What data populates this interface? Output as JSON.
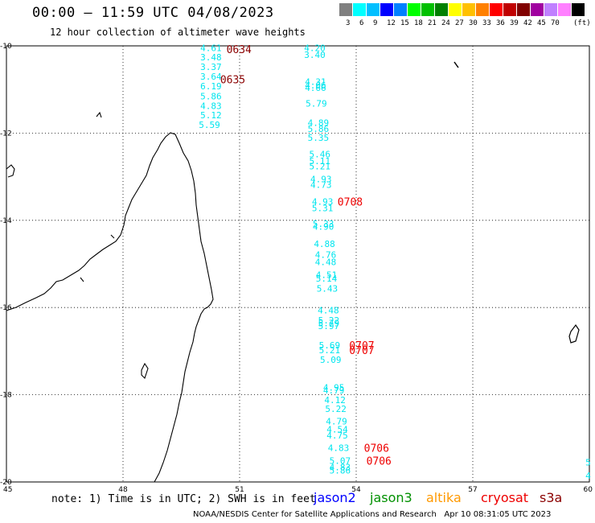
{
  "header": {
    "title": "00:00 – 11:59 UTC 04/08/2023",
    "subtitle": "12 hour collection of altimeter wave heights"
  },
  "legend_scale": {
    "unit": "(ft)",
    "colors": [
      "#808080",
      "#00ffff",
      "#00bfff",
      "#0000ff",
      "#0080ff",
      "#00ff00",
      "#00c000",
      "#008000",
      "#ffff00",
      "#ffc000",
      "#ff8000",
      "#ff0000",
      "#c00000",
      "#800000",
      "#a000a0",
      "#c080ff",
      "#ff80ff",
      "#000000"
    ],
    "labels": [
      "3",
      "6",
      "9",
      "12",
      "15",
      "18",
      "21",
      "24",
      "27",
      "30",
      "33",
      "36",
      "39",
      "42",
      "45",
      "70"
    ]
  },
  "axes": {
    "lon_labels": [
      "45",
      "48",
      "51",
      "54",
      "57",
      "60"
    ],
    "lat_labels": [
      "-10",
      "-12",
      "-14",
      "-16",
      "-18",
      "-20"
    ]
  },
  "wave_labels": [
    {
      "t": "4.61",
      "lon": 49.99,
      "lat": -10.05
    },
    {
      "t": "3.48",
      "lon": 49.99,
      "lat": -10.26
    },
    {
      "t": "3.37",
      "lon": 49.99,
      "lat": -10.48
    },
    {
      "t": "3.64",
      "lon": 49.99,
      "lat": -10.7
    },
    {
      "t": "6.19",
      "lon": 49.99,
      "lat": -10.92
    },
    {
      "t": "5.86",
      "lon": 49.99,
      "lat": -11.15
    },
    {
      "t": "4.83",
      "lon": 49.99,
      "lat": -11.37
    },
    {
      "t": "5.12",
      "lon": 49.99,
      "lat": -11.59
    },
    {
      "t": "5.59",
      "lon": 49.95,
      "lat": -11.81
    },
    {
      "t": "4.20",
      "lon": 52.66,
      "lat": -10.05
    },
    {
      "t": "3.40",
      "lon": 52.66,
      "lat": -10.2
    },
    {
      "t": "4.31",
      "lon": 52.68,
      "lat": -10.82
    },
    {
      "t": "4.06",
      "lon": 52.68,
      "lat": -10.9
    },
    {
      "t": "4.66",
      "lon": 52.68,
      "lat": -10.96
    },
    {
      "t": "5.79",
      "lon": 52.7,
      "lat": -11.32
    },
    {
      "t": "4.89",
      "lon": 52.75,
      "lat": -11.76
    },
    {
      "t": "5.86",
      "lon": 52.75,
      "lat": -11.9
    },
    {
      "t": "5.35",
      "lon": 52.75,
      "lat": -12.1
    },
    {
      "t": "5.46",
      "lon": 52.79,
      "lat": -12.48
    },
    {
      "t": "5.11",
      "lon": 52.79,
      "lat": -12.64
    },
    {
      "t": "5.21",
      "lon": 52.79,
      "lat": -12.76
    },
    {
      "t": "4.93",
      "lon": 52.82,
      "lat": -13.05
    },
    {
      "t": "4.73",
      "lon": 52.82,
      "lat": -13.18
    },
    {
      "t": "4.93",
      "lon": 52.86,
      "lat": -13.57
    },
    {
      "t": "5.31",
      "lon": 52.86,
      "lat": -13.72
    },
    {
      "t": "5.33",
      "lon": 52.88,
      "lat": -14.08
    },
    {
      "t": "4.90",
      "lon": 52.88,
      "lat": -14.14
    },
    {
      "t": "4.88",
      "lon": 52.91,
      "lat": -14.54
    },
    {
      "t": "4.76",
      "lon": 52.94,
      "lat": -14.79
    },
    {
      "t": "4.48",
      "lon": 52.94,
      "lat": -14.95
    },
    {
      "t": "4.51",
      "lon": 52.96,
      "lat": -15.25
    },
    {
      "t": "5.14",
      "lon": 52.96,
      "lat": -15.33
    },
    {
      "t": "5.43",
      "lon": 52.98,
      "lat": -15.56
    },
    {
      "t": "4.48",
      "lon": 53.01,
      "lat": -16.06
    },
    {
      "t": "5.22",
      "lon": 53.02,
      "lat": -16.29
    },
    {
      "t": "5.79",
      "lon": 53.02,
      "lat": -16.36
    },
    {
      "t": "5.97",
      "lon": 53.02,
      "lat": -16.42
    },
    {
      "t": "5.69",
      "lon": 53.04,
      "lat": -16.86
    },
    {
      "t": "5.21",
      "lon": 53.04,
      "lat": -16.97
    },
    {
      "t": "5.09",
      "lon": 53.07,
      "lat": -17.2
    },
    {
      "t": "4.95",
      "lon": 53.15,
      "lat": -17.83
    },
    {
      "t": "4.79",
      "lon": 53.15,
      "lat": -17.9
    },
    {
      "t": "4.12",
      "lon": 53.18,
      "lat": -18.12
    },
    {
      "t": "5.22",
      "lon": 53.2,
      "lat": -18.32
    },
    {
      "t": "4.79",
      "lon": 53.22,
      "lat": -18.61
    },
    {
      "t": "4.54",
      "lon": 53.24,
      "lat": -18.79
    },
    {
      "t": "4.75",
      "lon": 53.24,
      "lat": -18.93
    },
    {
      "t": "4.83",
      "lon": 53.27,
      "lat": -19.22
    },
    {
      "t": "5.07",
      "lon": 53.31,
      "lat": -19.51
    },
    {
      "t": "4.83",
      "lon": 53.31,
      "lat": -19.66
    },
    {
      "t": "5.86",
      "lon": 53.31,
      "lat": -19.73
    },
    {
      "t": "5",
      "lon": 59.9,
      "lat": -19.55
    },
    {
      "t": "4",
      "lon": 59.9,
      "lat": -19.85
    }
  ],
  "time_labels": [
    {
      "t": "0634",
      "lon": 50.66,
      "lat": -10.07,
      "style": "dark"
    },
    {
      "t": "0635",
      "lon": 50.5,
      "lat": -10.77,
      "style": "dark"
    },
    {
      "t": "0708",
      "lon": 53.52,
      "lat": -13.57,
      "style": "red"
    },
    {
      "t": "0707",
      "lon": 53.82,
      "lat": -16.86,
      "style": "red"
    },
    {
      "t": "0707",
      "lon": 53.82,
      "lat": -16.97,
      "style": "red"
    },
    {
      "t": "0706",
      "lon": 54.2,
      "lat": -19.22,
      "style": "red"
    },
    {
      "t": "0706",
      "lon": 54.26,
      "lat": -19.51,
      "style": "red"
    }
  ],
  "footer": {
    "note": "note: 1) Time is in UTC; 2) SWH is in feet",
    "satellites": [
      {
        "name": "jason2",
        "color": "#0000ff"
      },
      {
        "name": "jason3",
        "color": "#009000"
      },
      {
        "name": "altika",
        "color": "#ff9900"
      },
      {
        "name": "cryosat",
        "color": "#ee0000"
      },
      {
        "name": "s3a",
        "color": "#8b0000"
      }
    ],
    "credit_org": "NOAA/NESDIS Center for Satellite Applications and Research",
    "credit_date": "Apr 10 08:31:05 UTC 2023"
  }
}
